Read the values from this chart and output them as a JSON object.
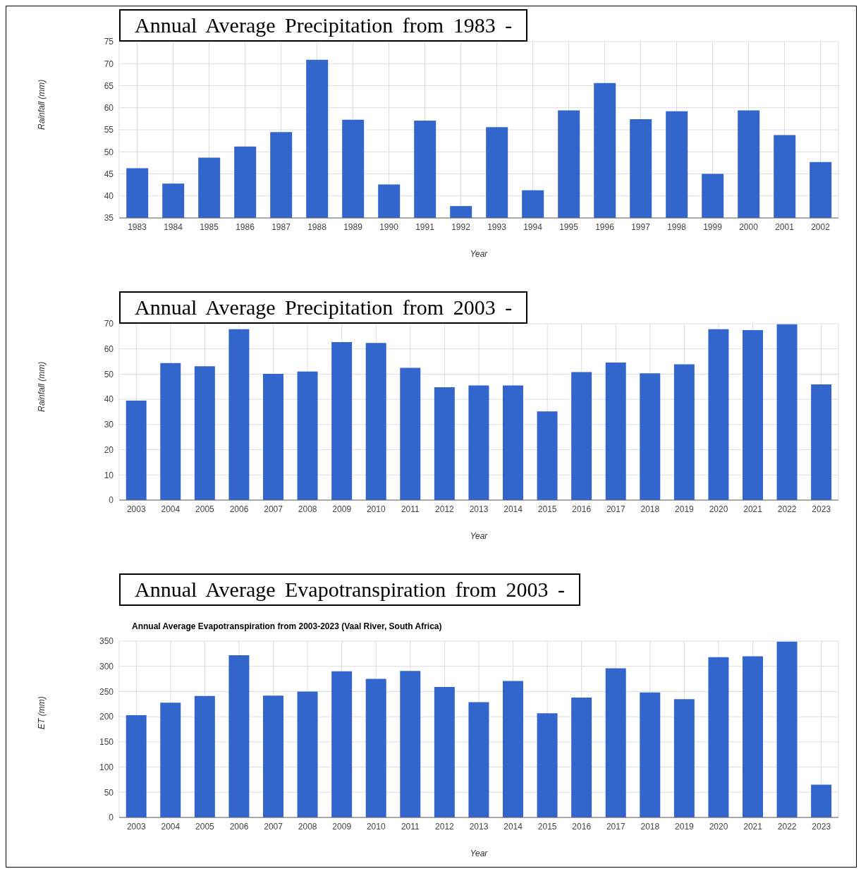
{
  "chart_data": [
    {
      "type": "bar",
      "title": "Annual Average Precipitation from 1983 -",
      "xlabel": "Year",
      "ylabel": "Rainfall (mm)",
      "categories": [
        "1983",
        "1984",
        "1985",
        "1986",
        "1987",
        "1988",
        "1989",
        "1990",
        "1991",
        "1992",
        "1993",
        "1994",
        "1995",
        "1996",
        "1997",
        "1998",
        "1999",
        "2000",
        "2001",
        "2002"
      ],
      "values": [
        46.3,
        42.8,
        48.7,
        51.2,
        54.5,
        70.9,
        57.3,
        42.6,
        57.1,
        37.7,
        55.6,
        41.3,
        59.4,
        65.6,
        57.4,
        59.2,
        45.0,
        59.4,
        53.8,
        47.7
      ],
      "color": "#3366cc",
      "ylim": [
        35,
        75
      ],
      "yticks": [
        35,
        40,
        45,
        50,
        55,
        60,
        65,
        70,
        75
      ],
      "grid": true,
      "legend": false
    },
    {
      "type": "bar",
      "title": "Annual Average Precipitation from 2003 -",
      "xlabel": "Year",
      "ylabel": "Rainfall (mm)",
      "categories": [
        "2003",
        "2004",
        "2005",
        "2006",
        "2007",
        "2008",
        "2009",
        "2010",
        "2011",
        "2012",
        "2013",
        "2014",
        "2015",
        "2016",
        "2017",
        "2018",
        "2019",
        "2020",
        "2021",
        "2022",
        "2023"
      ],
      "values": [
        39.5,
        54.4,
        53.1,
        67.8,
        50.1,
        51.0,
        62.7,
        62.4,
        52.5,
        44.8,
        45.5,
        45.5,
        35.2,
        50.8,
        54.6,
        50.3,
        53.9,
        67.8,
        67.5,
        69.8,
        45.9
      ],
      "color": "#3366cc",
      "ylim": [
        0,
        70
      ],
      "yticks": [
        0,
        10,
        20,
        30,
        40,
        50,
        60,
        70
      ],
      "grid": true,
      "legend": false
    },
    {
      "type": "bar",
      "title": "Annual Average Evapotranspiration from 2003 -",
      "subtitle": "Annual Average Evapotranspiration from 2003-2023 (Vaal River, South Africa)",
      "xlabel": "Year",
      "ylabel": "ET (mm)",
      "categories": [
        "2003",
        "2004",
        "2005",
        "2006",
        "2007",
        "2008",
        "2009",
        "2010",
        "2011",
        "2012",
        "2013",
        "2014",
        "2015",
        "2016",
        "2017",
        "2018",
        "2019",
        "2020",
        "2021",
        "2022",
        "2023"
      ],
      "values": [
        203,
        228,
        241,
        322,
        242,
        250,
        290,
        275,
        291,
        259,
        229,
        271,
        207,
        238,
        296,
        248,
        235,
        318,
        320,
        349,
        65
      ],
      "color": "#3366cc",
      "ylim": [
        0,
        350
      ],
      "yticks": [
        0,
        50,
        100,
        150,
        200,
        250,
        300,
        350
      ],
      "grid": true,
      "legend": false
    }
  ]
}
